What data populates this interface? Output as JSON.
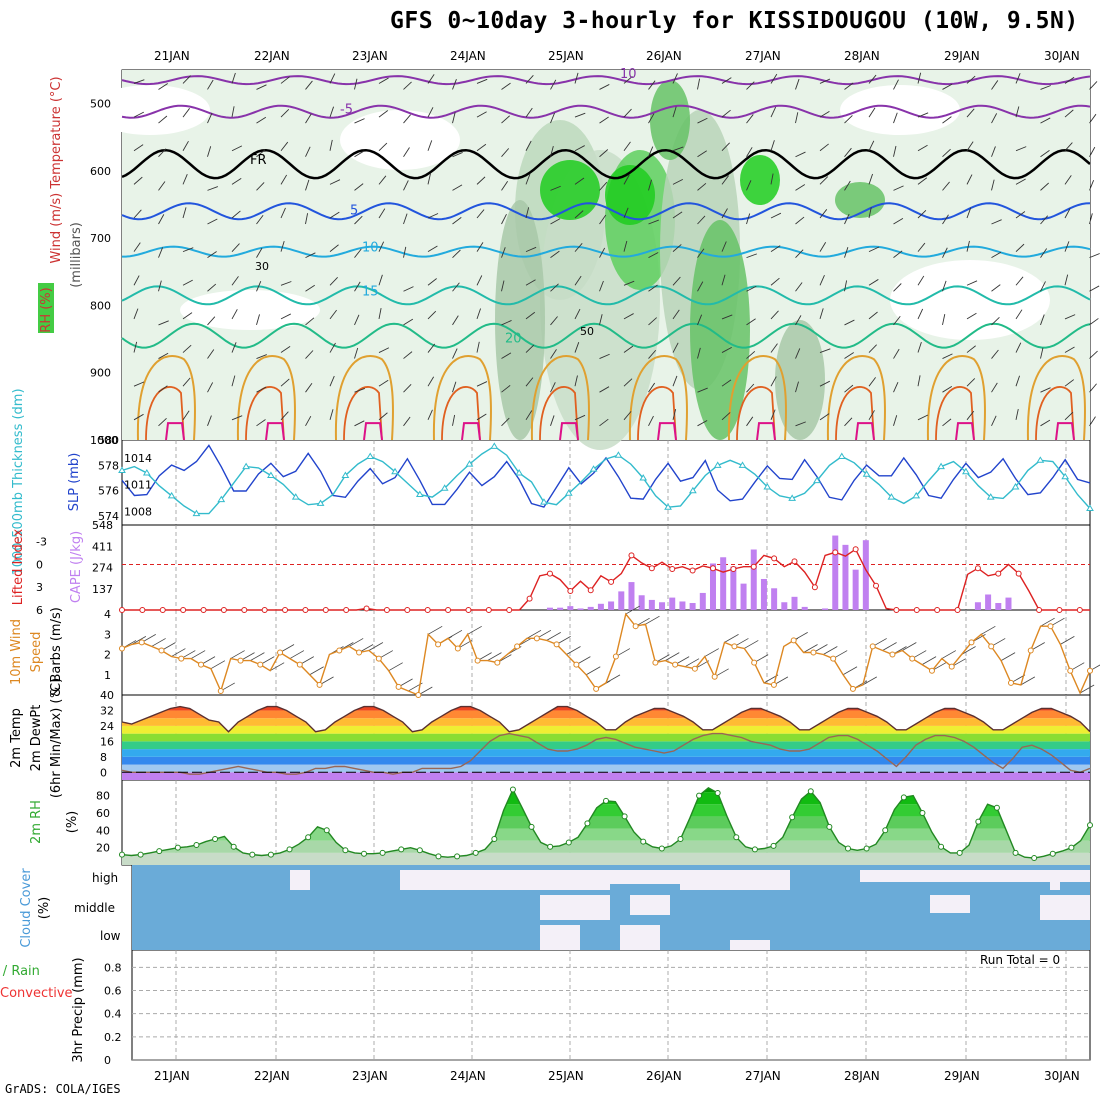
{
  "title": "GFS 0~10day 3-hourly for KISSIDOUGOU (10W, 9.5N)",
  "credit": "GrADS: COLA/IGES",
  "colors": {
    "rh": "#44cc44",
    "temperature": "#cc3333",
    "wind": "#000000",
    "cape": "#c080f0",
    "lifted": "#dd2222",
    "slp": "#2244cc",
    "thickness": "#33bbcc",
    "wind10": "#dd8822",
    "cloud": "#6aabd8",
    "precip_total": "#33aa33",
    "precip_conv": "#ee3333"
  },
  "chart_data": [
    {
      "type": "heatmap",
      "panel": "upper-air",
      "x_dates": [
        "21JAN",
        "22JAN",
        "23JAN",
        "24JAN",
        "25JAN",
        "26JAN",
        "27JAN",
        "28JAN",
        "29JAN",
        "30JAN"
      ],
      "ylabel": "(millibars)",
      "ylabels": [
        "Wind (m/s)",
        "Temperature (°C)",
        "RH (%)"
      ],
      "yticks": [
        500,
        600,
        700,
        800,
        900,
        1000
      ],
      "ylim": [
        1000,
        450
      ],
      "isotherm_labels": [
        "10",
        "-5",
        "FR",
        "5",
        "10",
        "15",
        "20"
      ],
      "rh_labels": [
        "30",
        "50"
      ]
    },
    {
      "type": "line",
      "panel": "slp-thickness",
      "ylabel_left": "1000-500mb Thickness (dm)",
      "ylabel_right": "SLP (mb)",
      "yticks_left": [
        574,
        576,
        578,
        580
      ],
      "yticks_right": [
        1008,
        1011,
        1014
      ],
      "series": [
        {
          "name": "SLP",
          "values": [
            1011.5,
            1009.8,
            1009.9,
            1012.0,
            1013.2,
            1012.6,
            1013.6,
            1015.4,
            1013.0,
            1010.3,
            1010.3,
            1012.2,
            1013.4,
            1011.9,
            1012.5,
            1014.5,
            1012.5,
            1009.8,
            1009.6,
            1011.4,
            1012.8,
            1011.1,
            1011.8,
            1013.9,
            1011.5,
            1008.8,
            1008.8,
            1010.5,
            1012.4,
            1010.9,
            1011.9,
            1013.6,
            1011.6,
            1008.9,
            1008.5,
            1010.7,
            1012.9,
            1011.1,
            1012.3,
            1014.0,
            1011.9,
            1009.5,
            1009.4,
            1011.6,
            1013.4,
            1011.4,
            1011.8,
            1013.7,
            1010.4,
            1009.2,
            1009.4,
            1011.3,
            1013.1,
            1011.7,
            1011.6,
            1013.8,
            1011.9,
            1009.6,
            1009.3,
            1011.5,
            1013.2,
            1012.0,
            1012.0,
            1014.0,
            1012.1,
            1009.8,
            1009.5,
            1011.6,
            1013.4,
            1011.8,
            1012.4,
            1013.9,
            1011.7,
            1009.9,
            1010.1,
            1011.8,
            1013.8,
            1011.6,
            1011.2
          ]
        },
        {
          "name": "Thickness",
          "values": [
            577.6,
            577.9,
            577.4,
            576.4,
            575.6,
            574.8,
            574.2,
            574.2,
            575.3,
            576.6,
            577.9,
            577.8,
            577.2,
            576.5,
            575.5,
            574.9,
            575.0,
            575.7,
            577.2,
            578.1,
            578.7,
            578.3,
            577.5,
            576.6,
            575.7,
            575.5,
            576.2,
            577.2,
            578.1,
            578.9,
            579.5,
            578.8,
            577.4,
            576.7,
            575.1,
            574.9,
            575.8,
            576.7,
            577.7,
            578.5,
            578.8,
            578.1,
            577.0,
            575.6,
            574.7,
            574.8,
            576.0,
            577.2,
            578.0,
            578.4,
            578.0,
            577.3,
            576.3,
            575.6,
            575.4,
            575.8,
            576.8,
            578.0,
            578.7,
            578.2,
            577.3,
            576.5,
            575.5,
            575.0,
            575.6,
            576.8,
            577.9,
            578.3,
            577.5,
            576.4,
            575.5,
            575.4,
            576.3,
            577.6,
            578.4,
            578.3,
            577.1,
            575.7,
            574.6
          ]
        }
      ]
    },
    {
      "type": "bar",
      "panel": "cape-li",
      "ylabel_left": "Lifted Index",
      "ylabel_right": "CAPE (J/kg)",
      "yticks_left": [
        "-3",
        "0",
        "3",
        "6"
      ],
      "yticks_right": [
        137,
        274,
        411,
        548
      ],
      "series": [
        {
          "name": "CAPE",
          "values": [
            0,
            0,
            0,
            0,
            0,
            0,
            0,
            0,
            0,
            0,
            0,
            0,
            0,
            0,
            0,
            0,
            0,
            0,
            0,
            0,
            0,
            0,
            0,
            0,
            0,
            0,
            0,
            0,
            0,
            0,
            0,
            0,
            0,
            0,
            0,
            0,
            0,
            0,
            0,
            0,
            0,
            0,
            15,
            15,
            25,
            10,
            20,
            40,
            55,
            120,
            180,
            95,
            65,
            50,
            80,
            55,
            45,
            110,
            300,
            340,
            280,
            170,
            390,
            200,
            140,
            50,
            85,
            20,
            0,
            10,
            480,
            420,
            260,
            450,
            0,
            0,
            0,
            0,
            0,
            0,
            0,
            0,
            0,
            0,
            50,
            100,
            45,
            80,
            0,
            0,
            0,
            0,
            0,
            0,
            0,
            0
          ]
        },
        {
          "name": "Lifted Index",
          "values": [
            6,
            6,
            6,
            6,
            6,
            6,
            6,
            6,
            6,
            6,
            6,
            6,
            6,
            6,
            6,
            6,
            6,
            6,
            6,
            6,
            6,
            6,
            6,
            6,
            5.8,
            6,
            6,
            6,
            6,
            6,
            6,
            6,
            6,
            6,
            6,
            6,
            6,
            6,
            6,
            6,
            4.5,
            1.5,
            1.2,
            2.0,
            3.5,
            2.2,
            3.4,
            1.5,
            2.3,
            1.2,
            -1.2,
            -0.2,
            0.5,
            -0.3,
            0.6,
            0.3,
            0.8,
            0.2,
            0.5,
            1.0,
            0.6,
            0.3,
            0.3,
            -1.2,
            -0.8,
            0.3,
            -0.4,
            1.0,
            3.0,
            -1.2,
            -1.6,
            -1.1,
            -2.0,
            0.7,
            2.8,
            5.8,
            6,
            6,
            6,
            6,
            6,
            6,
            6,
            1.3,
            0.5,
            1.5,
            1.2,
            0.0,
            1.2,
            3.5,
            6,
            6,
            6,
            6,
            6,
            6
          ]
        }
      ]
    },
    {
      "type": "line",
      "panel": "wind10",
      "ylabel": "10m Wind Speed & Barbs (m/s)",
      "yticks": [
        1,
        2,
        3,
        4
      ],
      "series": [
        {
          "name": "10m Wind Speed",
          "values": [
            2.3,
            2.5,
            2.6,
            2.4,
            2.2,
            1.9,
            1.8,
            1.8,
            1.5,
            1.3,
            0.2,
            1.8,
            1.7,
            1.7,
            1.5,
            1.2,
            2.1,
            1.8,
            1.5,
            1.0,
            0.5,
            2.0,
            2.2,
            2.4,
            2.1,
            2.2,
            1.8,
            1.2,
            0.4,
            0.2,
            0.0,
            3.0,
            2.5,
            2.8,
            2.3,
            3.0,
            1.7,
            1.7,
            1.6,
            2.0,
            2.4,
            2.8,
            2.8,
            2.7,
            2.5,
            2.0,
            1.5,
            1.0,
            0.3,
            0.6,
            1.9,
            4.0,
            3.4,
            3.5,
            1.6,
            1.7,
            1.5,
            1.4,
            1.3,
            1.9,
            0.9,
            2.6,
            2.4,
            2.3,
            1.6,
            0.6,
            0.5,
            2.4,
            2.7,
            2.1,
            2.1,
            2.0,
            1.8,
            1.0,
            0.3,
            0.5,
            2.4,
            2.2,
            2.0,
            2.2,
            1.8,
            1.5,
            1.2,
            1.8,
            1.4,
            2.0,
            2.6,
            3.0,
            2.4,
            1.7,
            0.6,
            0.5,
            2.2,
            3.4,
            3.4,
            2.5,
            1.2,
            0.1,
            1.2
          ]
        }
      ]
    },
    {
      "type": "area",
      "panel": "temperature",
      "ylabel": "2m Temp 2m DewPt (6hr Min/Max) (°C)",
      "yticks": [
        0,
        8,
        16,
        24,
        32,
        40
      ],
      "series": [
        {
          "name": "2m Temp",
          "values": [
            26,
            25,
            27,
            29,
            31,
            33,
            34,
            33,
            30,
            27,
            26,
            21,
            26,
            29,
            32,
            34,
            34,
            32,
            29,
            26,
            21,
            22,
            26,
            29,
            32,
            34,
            34,
            32,
            29,
            26,
            21,
            22,
            26,
            29,
            32,
            34,
            34,
            32,
            29,
            26,
            21,
            22,
            25,
            28,
            31,
            34,
            34,
            32,
            29,
            26,
            22,
            22,
            26,
            29,
            31,
            33,
            33,
            31,
            29,
            26,
            22,
            22,
            25,
            28,
            31,
            33,
            33,
            31,
            29,
            26,
            22,
            22,
            25,
            28,
            31,
            33,
            33,
            31,
            29,
            26,
            22,
            22,
            25,
            28,
            31,
            33,
            33,
            31,
            29,
            26,
            22,
            22,
            25,
            28,
            31,
            33,
            33,
            31,
            29,
            26,
            21
          ]
        },
        {
          "name": "2m DewPt",
          "values": [
            1,
            0,
            0,
            0,
            0,
            0,
            0,
            -1,
            -1,
            0,
            1,
            2,
            3,
            2,
            1,
            0,
            0,
            -1,
            -1,
            0,
            2,
            2,
            3,
            3,
            2,
            1,
            0,
            0,
            -1,
            0,
            0,
            2,
            2,
            2,
            2,
            3,
            6,
            11,
            16,
            19,
            20,
            19,
            18,
            15,
            12,
            11,
            11,
            12,
            14,
            17,
            18,
            17,
            15,
            13,
            12,
            11,
            10,
            11,
            14,
            17,
            19,
            20,
            20,
            19,
            18,
            16,
            15,
            14,
            12,
            11,
            11,
            12,
            15,
            18,
            19,
            19,
            17,
            14,
            11,
            7,
            3,
            8,
            14,
            17,
            19,
            19,
            18,
            16,
            13,
            9,
            5,
            2,
            7,
            13,
            14,
            12,
            9,
            5,
            1,
            0,
            2
          ]
        }
      ]
    },
    {
      "type": "area",
      "panel": "rh",
      "ylabel": "2m RH (%)",
      "yticks": [
        20,
        40,
        60,
        80
      ],
      "series": [
        {
          "name": "2m RH",
          "values": [
            12,
            11,
            12,
            14,
            16,
            18,
            20,
            21,
            23,
            27,
            30,
            33,
            21,
            14,
            12,
            11,
            12,
            14,
            18,
            24,
            32,
            44,
            40,
            26,
            17,
            14,
            13,
            13,
            14,
            16,
            18,
            20,
            17,
            13,
            10,
            9,
            10,
            11,
            14,
            18,
            30,
            63,
            87,
            66,
            44,
            26,
            21,
            22,
            26,
            32,
            48,
            66,
            74,
            73,
            56,
            38,
            27,
            21,
            19,
            22,
            30,
            54,
            80,
            89,
            83,
            56,
            32,
            21,
            18,
            19,
            22,
            32,
            55,
            76,
            85,
            72,
            44,
            26,
            19,
            17,
            19,
            24,
            40,
            64,
            78,
            80,
            60,
            38,
            21,
            14,
            14,
            23,
            50,
            70,
            66,
            40,
            14,
            9,
            8,
            10,
            13,
            16,
            20,
            28,
            46
          ]
        }
      ]
    },
    {
      "type": "heatmap",
      "panel": "cloud",
      "ylabel": "Cloud Cover (%)",
      "levels": [
        "high",
        "middle",
        "low"
      ]
    },
    {
      "type": "line",
      "panel": "precip",
      "ylabel_left": "Total / Rain Convective",
      "ylabel_right": "3hr Precip (mm)",
      "yticks": [
        0,
        0.2,
        0.4,
        0.6,
        0.8
      ],
      "run_total": "Run Total = 0",
      "series": [
        {
          "name": "3hr Precip",
          "values": [
            0
          ]
        }
      ]
    }
  ]
}
